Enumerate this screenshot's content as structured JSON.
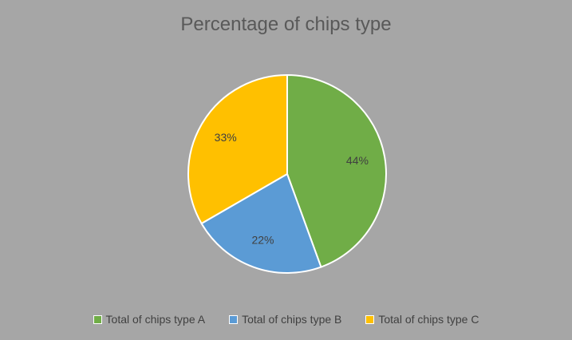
{
  "chart_data": {
    "type": "pie",
    "title": "Percentage of chips type",
    "categories": [
      "Total of chips type A",
      "Total of chips type B",
      "Total of chips type C"
    ],
    "values": [
      44,
      22,
      33
    ],
    "labels": [
      "44%",
      "22%",
      "33%"
    ],
    "colors": [
      "#70ad47",
      "#5b9bd5",
      "#ffc000"
    ],
    "legend_position": "bottom"
  }
}
